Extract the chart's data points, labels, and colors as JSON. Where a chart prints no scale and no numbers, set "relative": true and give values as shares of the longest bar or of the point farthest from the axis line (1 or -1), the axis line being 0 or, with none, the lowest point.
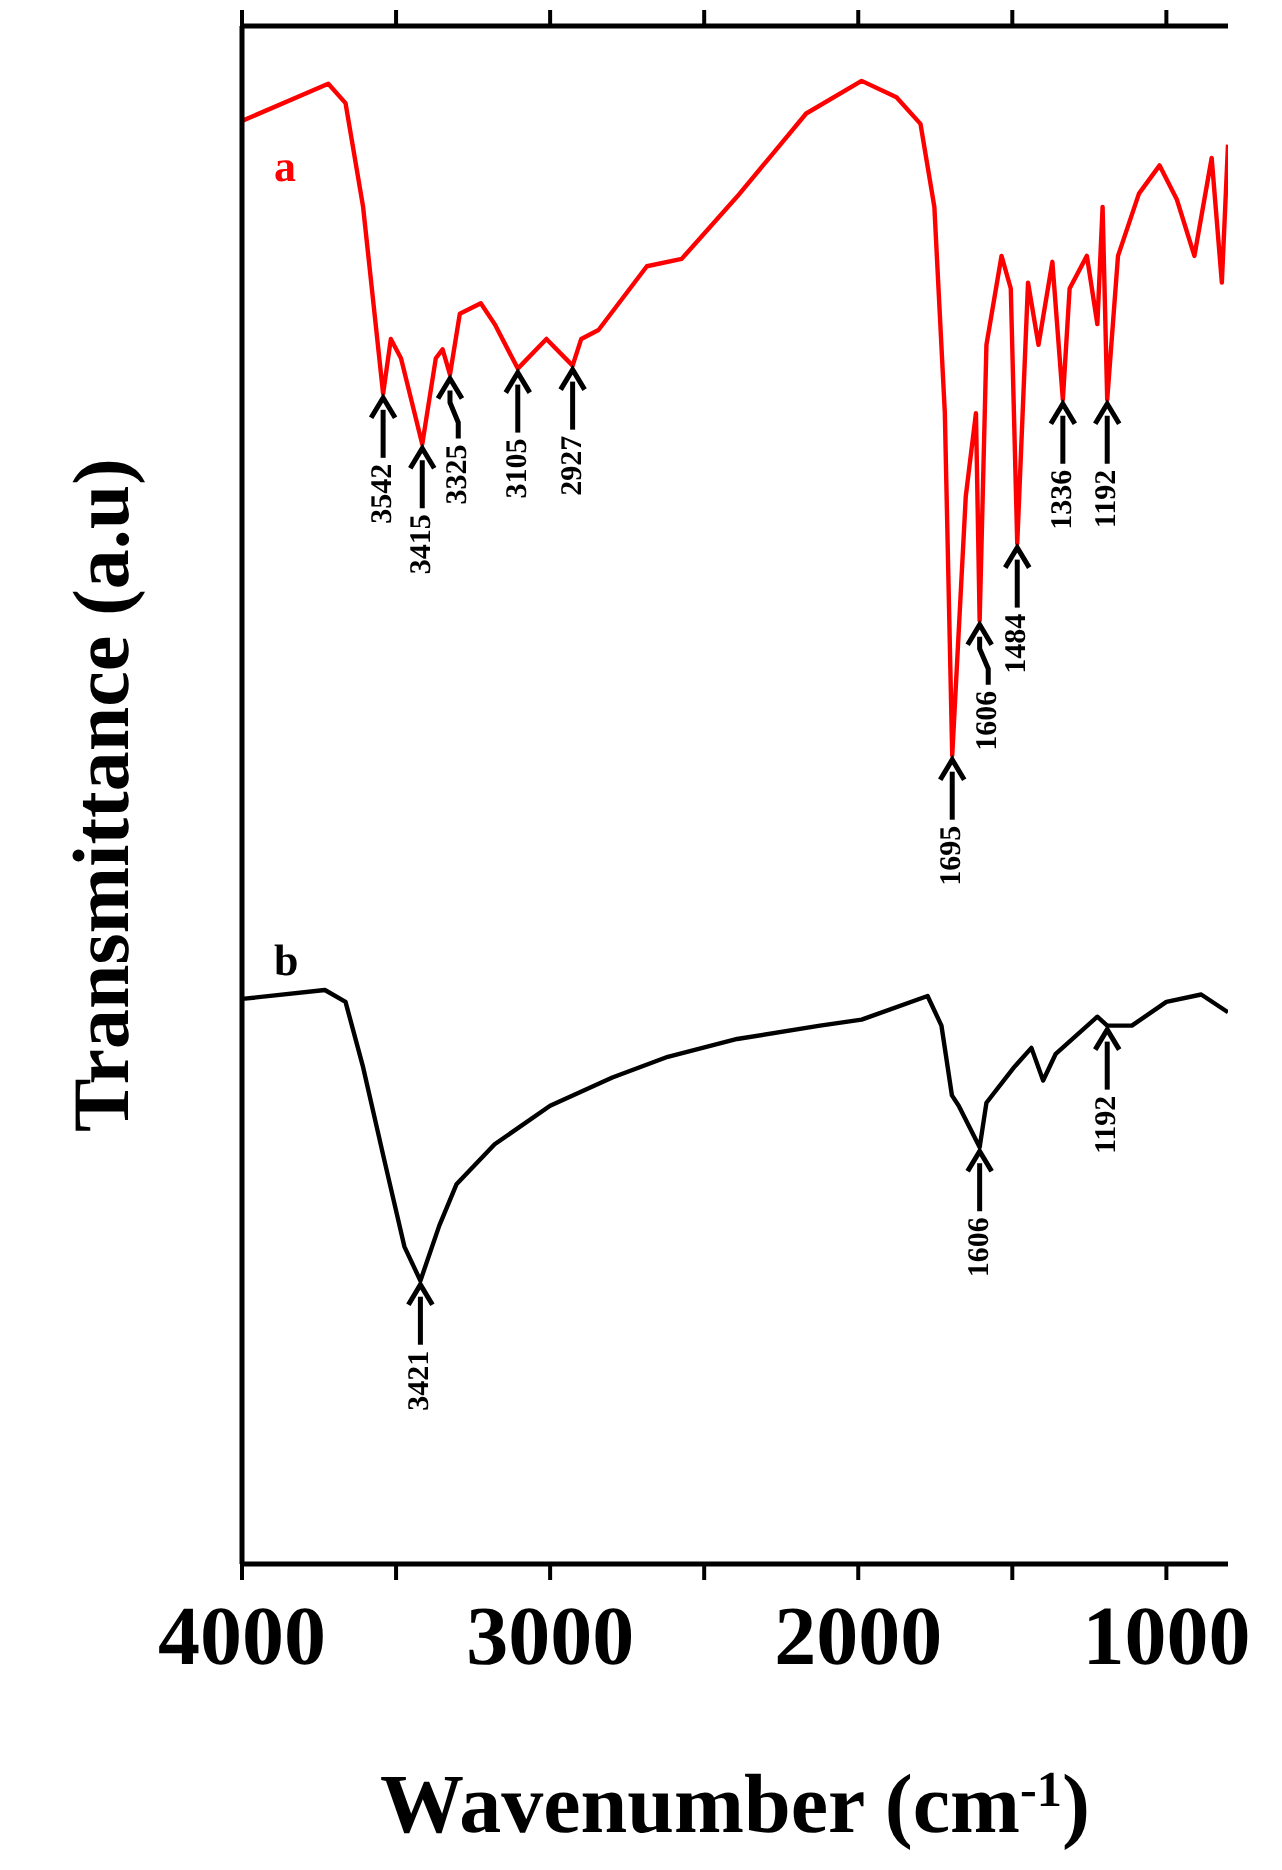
{
  "chart_data": {
    "type": "line",
    "relative": true,
    "xlabel": "Wavenumber (cm$^{-1}$)",
    "ylabel": "Transmittance (a.u)",
    "xlim": [
      4000,
      800
    ],
    "xticks": [
      4000,
      {
        "value": 3500,
        "label": null
      },
      3000,
      {
        "value": 2500,
        "label": null
      },
      2000,
      {
        "value": 1500,
        "label": null
      },
      1000
    ],
    "series": [
      {
        "name": "a",
        "color": "#ff0000",
        "x": [
          4000,
          3720,
          3664,
          3607,
          3542,
          3517,
          3484,
          3415,
          3371,
          3349,
          3325,
          3293,
          3225,
          3180,
          3105,
          3012,
          2927,
          2899,
          2843,
          2686,
          2573,
          2393,
          2281,
          2169,
          1989,
          1876,
          1798,
          1753,
          1719,
          1695,
          1651,
          1618,
          1606,
          1584,
          1535,
          1505,
          1484,
          1449,
          1415,
          1370,
          1336,
          1314,
          1258,
          1224,
          1207,
          1192,
          1157,
          1089,
          1022,
          966,
          909,
          853,
          820,
          800
        ],
        "values": [
          0.973,
          0.998,
          0.985,
          0.915,
          0.789,
          0.826,
          0.813,
          0.755,
          0.813,
          0.819,
          0.802,
          0.843,
          0.85,
          0.836,
          0.806,
          0.826,
          0.808,
          0.826,
          0.832,
          0.875,
          0.88,
          0.922,
          0.95,
          0.978,
          1,
          0.989,
          0.971,
          0.915,
          0.776,
          0.545,
          0.72,
          0.776,
          0.636,
          0.822,
          0.882,
          0.86,
          0.688,
          0.864,
          0.822,
          0.878,
          0.785,
          0.86,
          0.882,
          0.836,
          0.915,
          0.785,
          0.882,
          0.924,
          0.943,
          0.92,
          0.882,
          0.948,
          0.864,
          0.957
        ]
      },
      {
        "name": "b",
        "color": "#000000",
        "x": [
          4000,
          3731,
          3664,
          3607,
          3540,
          3473,
          3421,
          3360,
          3304,
          3180,
          3000,
          2798,
          2618,
          2393,
          2124,
          1989,
          1775,
          1730,
          1696,
          1674,
          1606,
          1584,
          1494,
          1438,
          1400,
          1359,
          1224,
          1192,
          1112,
          1000,
          887,
          800
        ],
        "values": [
          0.381,
          0.387,
          0.379,
          0.335,
          0.274,
          0.214,
          0.191,
          0.228,
          0.256,
          0.283,
          0.309,
          0.328,
          0.342,
          0.354,
          0.363,
          0.367,
          0.383,
          0.363,
          0.316,
          0.309,
          0.281,
          0.311,
          0.335,
          0.348,
          0.326,
          0.344,
          0.369,
          0.363,
          0.363,
          0.379,
          0.384,
          0.372
        ]
      }
    ],
    "annotations": [
      {
        "text": "3542",
        "x": 3542,
        "y": 0.789
      },
      {
        "text": "3415",
        "x": 3415,
        "y": 0.755
      },
      {
        "text": "3325",
        "x": 3325,
        "y": 0.802
      },
      {
        "text": "3105",
        "x": 3105,
        "y": 0.806
      },
      {
        "text": "2927",
        "x": 2927,
        "y": 0.808
      },
      {
        "text": "1695",
        "x": 1695,
        "y": 0.545
      },
      {
        "text": "1606",
        "x": 1606,
        "y": 0.636
      },
      {
        "text": "1484",
        "x": 1484,
        "y": 0.688
      },
      {
        "text": "1336",
        "x": 1336,
        "y": 0.785
      },
      {
        "text": "1192",
        "x": 1192,
        "y": 0.785
      },
      {
        "text": "3421",
        "x": 3421,
        "y": 0.191
      },
      {
        "text": "1606",
        "x": 1606,
        "y": 0.281
      },
      {
        "text": "1192",
        "x": 1192,
        "y": 0.363
      }
    ]
  }
}
